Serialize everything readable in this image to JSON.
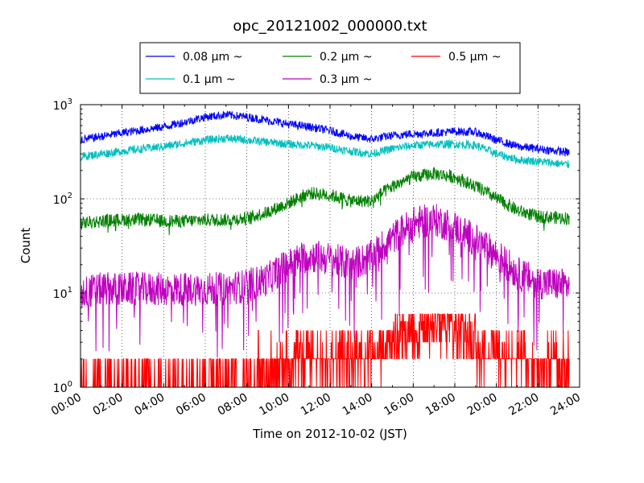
{
  "chart_data": {
    "type": "line",
    "title": "opc_20121002_000000.txt",
    "xlabel": "Time on 2012-10-02 (JST)",
    "ylabel": "Count",
    "y_scale": "log",
    "ylim": [
      1,
      1000
    ],
    "xlim": [
      0,
      24
    ],
    "grid": true,
    "legend_position": "top-center",
    "x_tick_labels": [
      "00:00",
      "02:00",
      "04:00",
      "06:00",
      "08:00",
      "10:00",
      "12:00",
      "14:00",
      "16:00",
      "18:00",
      "20:00",
      "22:00",
      "24:00"
    ],
    "y_tick_labels": [
      {
        "base": "10",
        "exp": "0"
      },
      {
        "base": "10",
        "exp": "1"
      },
      {
        "base": "10",
        "exp": "2"
      },
      {
        "base": "10",
        "exp": "3"
      }
    ],
    "x": [
      0,
      1,
      2,
      3,
      4,
      5,
      6,
      7,
      8,
      9,
      10,
      11,
      12,
      13,
      14,
      15,
      16,
      17,
      18,
      19,
      20,
      21,
      22,
      23.5
    ],
    "series": [
      {
        "name": "0.08 μm ~",
        "color": "#0000ff",
        "values": [
          420,
          460,
          500,
          540,
          580,
          650,
          740,
          780,
          740,
          680,
          620,
          580,
          530,
          460,
          430,
          470,
          490,
          500,
          520,
          510,
          420,
          360,
          340,
          310
        ]
      },
      {
        "name": "0.1 μm ~",
        "color": "#00bfbf",
        "values": [
          280,
          300,
          320,
          340,
          360,
          390,
          420,
          440,
          420,
          400,
          380,
          370,
          350,
          320,
          300,
          340,
          370,
          380,
          380,
          370,
          300,
          260,
          250,
          230
        ]
      },
      {
        "name": "0.2 μm ~",
        "color": "#008000",
        "values": [
          55,
          58,
          60,
          60,
          58,
          58,
          60,
          60,
          62,
          72,
          90,
          115,
          110,
          95,
          95,
          135,
          170,
          185,
          170,
          135,
          100,
          75,
          65,
          62
        ]
      },
      {
        "name": "0.3 μm ~",
        "color": "#bf00bf",
        "values": [
          10,
          11,
          11,
          11,
          11,
          11,
          11,
          11,
          12,
          14,
          20,
          25,
          23,
          20,
          24,
          38,
          55,
          60,
          50,
          36,
          25,
          16,
          13,
          12
        ]
      },
      {
        "name": "0.5 μm ~",
        "color": "#ff0000",
        "values": [
          1,
          1,
          1,
          1,
          1,
          1,
          1,
          1,
          1,
          1.1,
          1.2,
          1.4,
          1.3,
          1.3,
          1.4,
          1.8,
          2.2,
          2.4,
          2.2,
          1.8,
          1.5,
          1.3,
          1.2,
          1.2
        ]
      }
    ]
  }
}
